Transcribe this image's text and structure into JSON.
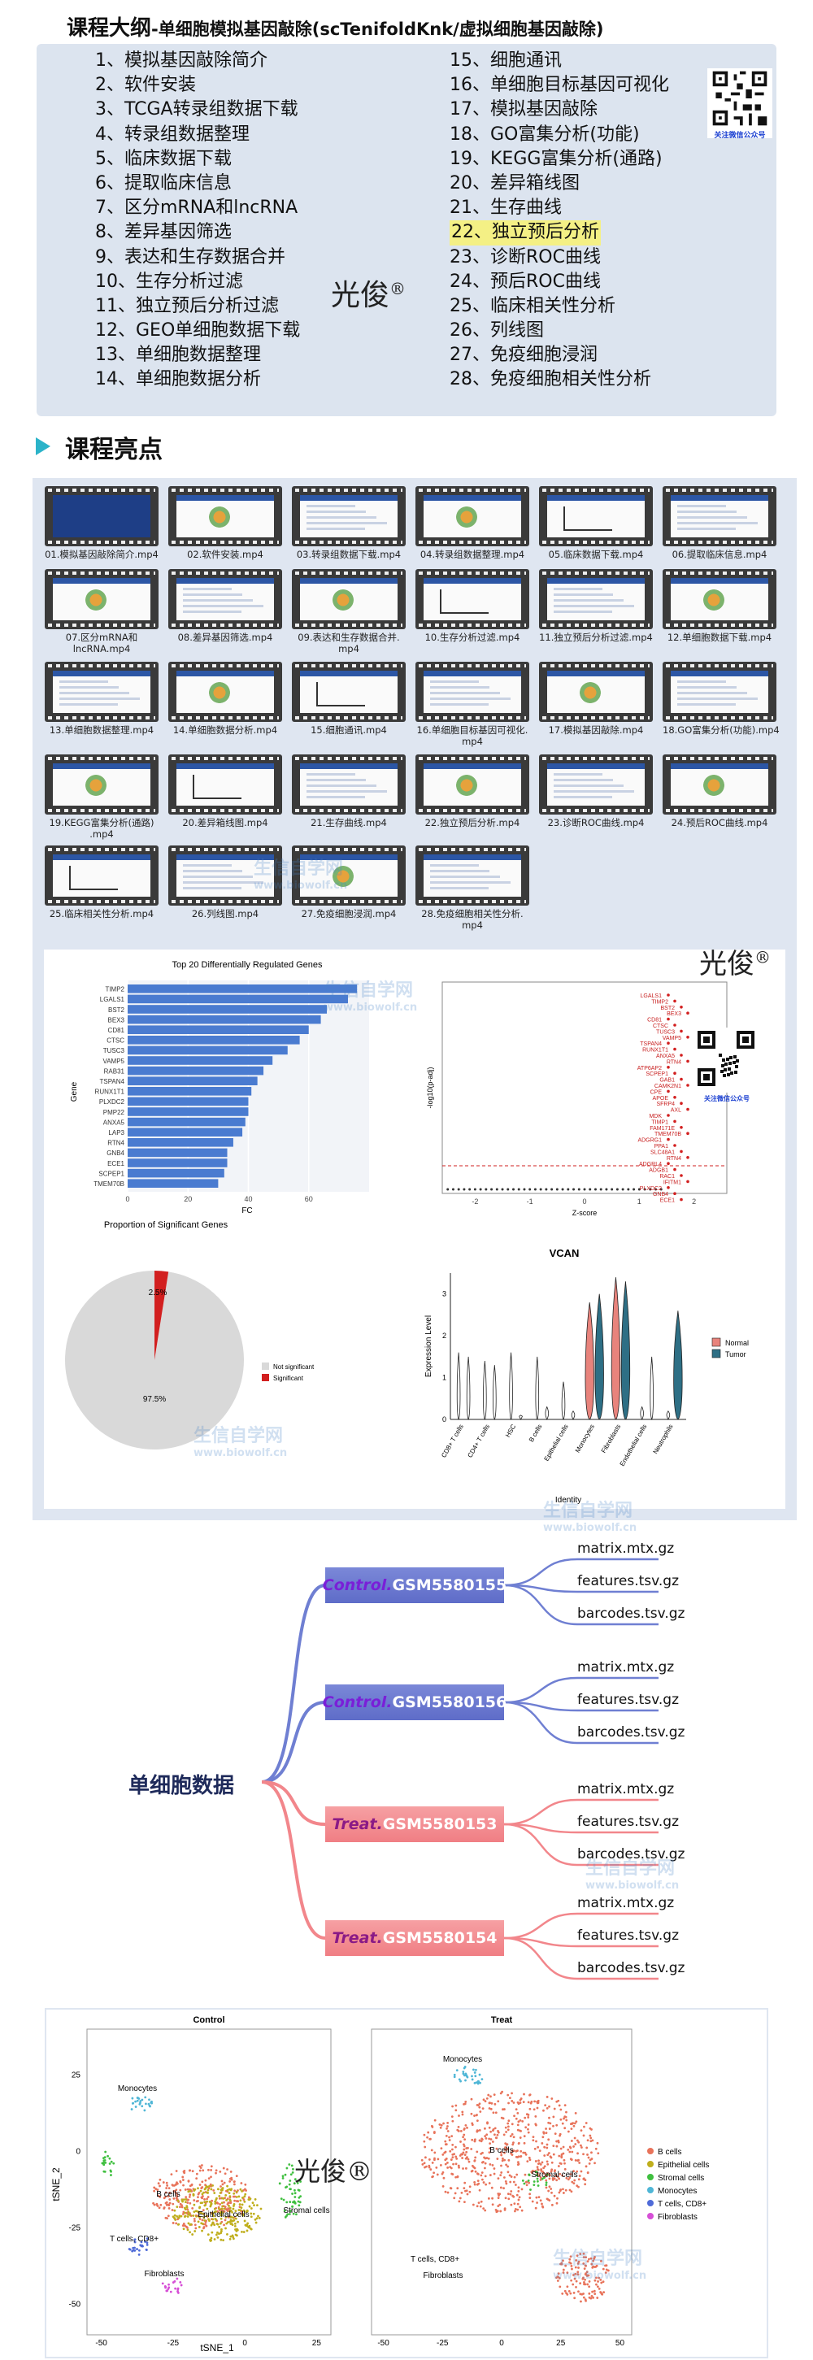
{
  "header": {
    "title_main": "课程大纲",
    "title_sub": "-单细胞模拟基因敲除(scTenifoldKnk/虚拟细胞基因敲除)"
  },
  "outline": {
    "left": [
      "1、模拟基因敲除简介",
      "2、软件安装",
      "3、TCGA转录组数据下载",
      "4、转录组数据整理",
      "5、临床数据下载",
      "6、提取临床信息",
      "7、区分mRNA和lncRNA",
      "8、差异基因筛选",
      "9、表达和生存数据合并",
      "10、生存分析过滤",
      "11、独立预后分析过滤",
      "12、GEO单细胞数据下载",
      "13、单细胞数据整理",
      "14、单细胞数据分析"
    ],
    "right": [
      "15、细胞通讯",
      "16、单细胞目标基因可视化",
      "17、模拟基因敲除",
      "18、GO富集分析(功能)",
      "19、KEGG富集分析(通路)",
      "20、差异箱线图",
      "21、生存曲线",
      "22、独立预后分析",
      "23、诊断ROC曲线",
      "24、预后ROC曲线",
      "25、临床相关性分析",
      "26、列线图",
      "27、免疫细胞浸润",
      "28、免疫细胞相关性分析"
    ]
  },
  "brand": {
    "name": "光俊",
    "mark": "®"
  },
  "qr_caption": "关注微信公众号",
  "highlights": {
    "title": "课程亮点",
    "videos": [
      "01.模拟基因敲除简介.mp4",
      "02.软件安装.mp4",
      "03.转录组数据下载.mp4",
      "04.转录组数据整理.mp4",
      "05.临床数据下载.mp4",
      "06.提取临床信息.mp4",
      "07.区分mRNA和\nlncRNA.mp4",
      "08.差异基因筛选.mp4",
      "09.表达和生存数据合并.\nmp4",
      "10.生存分析过滤.mp4",
      "11.独立预后分析过滤.mp4",
      "12.单细胞数据下载.mp4",
      "13.单细胞数据整理.mp4",
      "14.单细胞数据分析.mp4",
      "15.细胞通讯.mp4",
      "16.单细胞目标基因可视化.\nmp4",
      "17.模拟基因敲除.mp4",
      "18.GO富集分析(功能).mp4",
      "19.KEGG富集分析(通路)\n.mp4",
      "20.差异箱线图.mp4",
      "21.生存曲线.mp4",
      "22.独立预后分析.mp4",
      "23.诊断ROC曲线.mp4",
      "24.预后ROC曲线.mp4",
      "25.临床相关性分析.mp4",
      "26.列线图.mp4",
      "27.免疫细胞浸润.mp4",
      "28.免疫细胞相关性分析.\nmp4"
    ]
  },
  "watermark": {
    "text": "生信自学网",
    "url": "www.biowolf.cn"
  },
  "chart_data": [
    {
      "type": "bar",
      "orientation": "horizontal",
      "title": "Top 20 Differentially Regulated Genes",
      "xlabel": "FC",
      "ylabel": "Gene",
      "categories": [
        "TIMP2",
        "LGALS1",
        "BST2",
        "BEX3",
        "CD81",
        "CTSC",
        "TUSC3",
        "VAMP5",
        "RAB31",
        "TSPAN4",
        "RUNX1T1",
        "PLXDC2",
        "PMP22",
        "ANXA5",
        "LAP3",
        "RTN4",
        "GNB4",
        "ECE1",
        "SCPEP1",
        "TMEM70B"
      ],
      "values": [
        76,
        73,
        66,
        64,
        60,
        57,
        53,
        48,
        45,
        43,
        41,
        40,
        40,
        39,
        38,
        35,
        33,
        33,
        32,
        30
      ],
      "xticks": [
        0,
        20,
        40,
        60
      ],
      "xlim": [
        0,
        80
      ]
    },
    {
      "type": "scatter",
      "title": "",
      "xlabel": "Z-score",
      "ylabel": "-log10(p-adj)",
      "xticks": [
        -2,
        -1,
        0,
        1,
        2
      ],
      "labels": [
        "LGALS1",
        "TIMP2",
        "BST2",
        "BEX3",
        "CD81",
        "CTSC",
        "TUSC3",
        "VAMP5",
        "TSPAN4",
        "RUNX1T1",
        "ANXA5",
        "RTN4",
        "ATP6AP2",
        "SCPEP1",
        "GAB1",
        "CAMK2N1",
        "CPE",
        "APOE",
        "SFRP4",
        "AXL",
        "MDK",
        "TIMP1",
        "FAM171E",
        "TMEM70B",
        "ADGRG1",
        "PPA1",
        "SLC48A1",
        "RTN4",
        "ADGRL4",
        "ADGB1",
        "RAC1",
        "IFITM1",
        "PLXDC2",
        "GNB4",
        "ECE1"
      ]
    },
    {
      "type": "pie",
      "title": "Proportion of Significant Genes",
      "labels": [
        "Not significant",
        "Significant"
      ],
      "values": [
        97.5,
        2.5
      ],
      "slice_labels": [
        "97.5%",
        "2.5%"
      ],
      "colors": [
        "#d9d9d9",
        "#d21f1f"
      ]
    },
    {
      "type": "violin",
      "title": "VCAN",
      "xlabel": "Identity",
      "ylabel": "Expression Level",
      "categories": [
        "CD8+ T cells",
        "CD4+ T cells",
        "HSC",
        "B cells",
        "Epithelial cells",
        "Monocytes",
        "Fibroblasts",
        "Endothelial cells",
        "Neutrophils"
      ],
      "series": [
        {
          "name": "Normal",
          "color": "#e8837c",
          "values": [
            1.6,
            1.4,
            1.6,
            1.5,
            0.9,
            2.8,
            3.4,
            0.3,
            0.2
          ]
        },
        {
          "name": "Tumor",
          "color": "#2e6f85",
          "values": [
            1.5,
            1.3,
            0.1,
            0.3,
            0.2,
            3.0,
            3.3,
            1.5,
            2.6
          ]
        }
      ],
      "yticks": [
        0,
        1,
        2,
        3
      ]
    },
    {
      "type": "scatter",
      "title_left": "Control",
      "title_right": "Treat",
      "xlabel": "tSNE_1",
      "ylabel": "tSNE_2",
      "xticks_left": [
        -50,
        -25,
        0,
        25
      ],
      "xticks_right": [
        -50,
        -25,
        0,
        25,
        50
      ],
      "yticks": [
        -50,
        -25,
        0,
        25
      ],
      "legend": [
        {
          "name": "B cells",
          "color": "#e8735a"
        },
        {
          "name": "Epithelial cells",
          "color": "#bfae1c"
        },
        {
          "name": "Stromal cells",
          "color": "#3fbf3f"
        },
        {
          "name": "Monocytes",
          "color": "#4fb6d6"
        },
        {
          "name": "T cells, CD8+",
          "color": "#4f6bd8"
        },
        {
          "name": "Fibroblasts",
          "color": "#d64fd6"
        }
      ],
      "cluster_labels_left": [
        "Monocytes",
        "B cells",
        "Epithelial cells",
        "Stromal cells",
        "T cells, CD8+",
        "Fibroblasts"
      ],
      "cluster_labels_right": [
        "Monocytes",
        "B cells",
        "Stromal cells",
        "T cells, CD8+",
        "Fibroblasts"
      ]
    }
  ],
  "tree": {
    "root": "单细胞数据",
    "branches": [
      {
        "group": "Control.",
        "gsm": "GSM5580155",
        "kind": "ctrl",
        "files": [
          "matrix.mtx.gz",
          "features.tsv.gz",
          "barcodes.tsv.gz"
        ]
      },
      {
        "group": "Control.",
        "gsm": "GSM5580156",
        "kind": "ctrl",
        "files": [
          "matrix.mtx.gz",
          "features.tsv.gz",
          "barcodes.tsv.gz"
        ]
      },
      {
        "group": "Treat.",
        "gsm": "GSM5580153",
        "kind": "trt",
        "files": [
          "matrix.mtx.gz",
          "features.tsv.gz",
          "barcodes.tsv.gz"
        ]
      },
      {
        "group": "Treat.",
        "gsm": "GSM5580154",
        "kind": "trt",
        "files": [
          "matrix.mtx.gz",
          "features.tsv.gz",
          "barcodes.tsv.gz"
        ]
      }
    ]
  }
}
